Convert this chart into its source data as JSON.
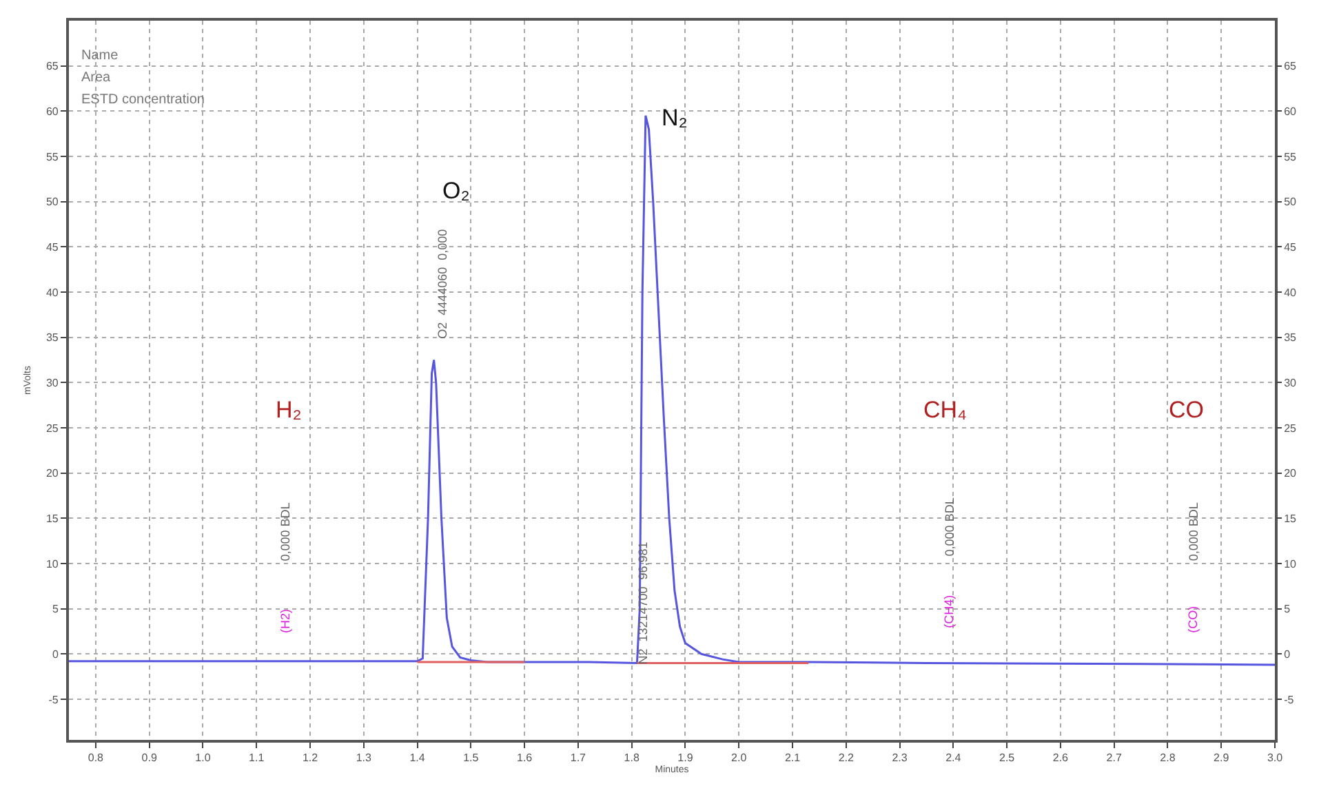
{
  "chart_data": {
    "type": "line",
    "xlabel": "Minutes",
    "ylabel": "mVolts",
    "xlim": [
      0.75,
      3.0
    ],
    "xticks": [
      {
        "value": 0.8,
        "label": "0.8"
      },
      {
        "value": 0.9,
        "label": "0.9"
      },
      {
        "value": 1.0,
        "label": "1.0"
      },
      1.1,
      1.2,
      1.3,
      1.4,
      1.5,
      1.6,
      1.7,
      1.8,
      1.9,
      {
        "value": 2.0,
        "label": "2.0"
      },
      2.1,
      2.2,
      2.3,
      2.4,
      2.5,
      2.6,
      2.7,
      2.8,
      2.9,
      {
        "value": 3.0,
        "label": "3.0"
      }
    ],
    "ylim": [
      -9.5,
      70
    ],
    "yticks": [
      -5,
      0,
      5,
      10,
      15,
      20,
      25,
      30,
      35,
      40,
      45,
      50,
      55,
      60,
      65
    ],
    "y2lim": [
      -9.5,
      70
    ],
    "y2ticks": [
      -5,
      0,
      5,
      10,
      15,
      20,
      25,
      30,
      35,
      40,
      45,
      50,
      55,
      60,
      65
    ],
    "grid": true,
    "marker": "none",
    "line_style": "solid",
    "series": [
      {
        "color": "#5555e0",
        "x": [
          0.75,
          1.4,
          1.41,
          1.42,
          1.427,
          1.431,
          1.435,
          1.445,
          1.455,
          1.465,
          1.48,
          1.5,
          1.53,
          1.6,
          1.72,
          1.81,
          1.815,
          1.82,
          1.826,
          1.832,
          1.84,
          1.85,
          1.86,
          1.87,
          1.88,
          1.89,
          1.9,
          1.93,
          1.97,
          2.0,
          2.13,
          2.35,
          2.75,
          3.0
        ],
        "values": [
          -0.8,
          -0.8,
          -0.5,
          15,
          31,
          32.5,
          30,
          15,
          4,
          0.8,
          -0.4,
          -0.7,
          -0.9,
          -0.9,
          -0.9,
          -1.0,
          5,
          40,
          59.5,
          58,
          50,
          38,
          26,
          15,
          7,
          3,
          1.2,
          0,
          -0.6,
          -0.9,
          -0.9,
          -1.0,
          -1.1,
          -1.2
        ]
      },
      {
        "color": "#e06060",
        "x": [
          1.4,
          1.6
        ],
        "values": [
          -0.9,
          -0.9
        ]
      },
      {
        "color": "#e06060",
        "x": [
          1.81,
          2.13
        ],
        "values": [
          -1.0,
          -1.0
        ]
      }
    ],
    "annotations": [
      "Name",
      "Area",
      "ESTD concentration",
      "O₂",
      "N₂",
      "H₂",
      "CH₄",
      "CO",
      "O2  4444060  0,000",
      "N2  13214700  96,981",
      "0,000 BDL",
      "(H2)",
      "0,000 BDL",
      "(CH4)",
      "0,000 BDL",
      "(CO)"
    ]
  }
}
